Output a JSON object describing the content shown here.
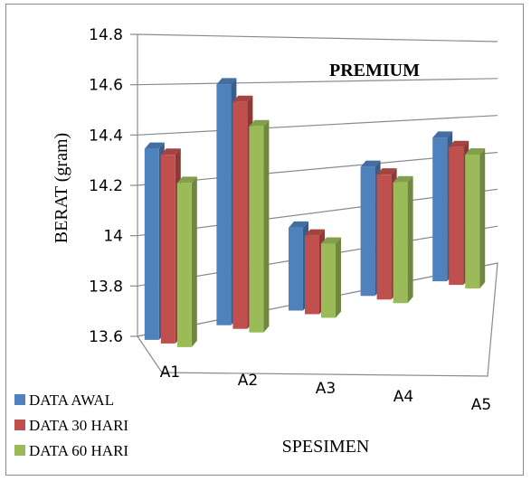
{
  "chart_data": {
    "type": "bar",
    "title": "PREMIUM",
    "xlabel": "SPESIMEN",
    "ylabel": "BERAT (gram)",
    "categories": [
      "A1",
      "A2",
      "A3",
      "A4",
      "A5"
    ],
    "series": [
      {
        "name": "DATA AWAL",
        "color": "#4f81bd",
        "values": [
          14.38,
          14.64,
          13.98,
          14.23,
          14.35
        ]
      },
      {
        "name": "DATA 30 HARI",
        "color": "#c0504d",
        "values": [
          14.37,
          14.58,
          13.96,
          14.21,
          14.32
        ]
      },
      {
        "name": "DATA 60 HARI",
        "color": "#9bbb59",
        "values": [
          14.27,
          14.49,
          13.94,
          14.19,
          14.3
        ]
      }
    ],
    "y_ticks": [
      "13.6",
      "13.8",
      "14",
      "14.2",
      "14.4",
      "14.6",
      "14.8"
    ],
    "ylim": [
      13.6,
      14.8
    ],
    "grid": true,
    "legend_position": "bottom-left",
    "style": "3d-clustered-column"
  }
}
